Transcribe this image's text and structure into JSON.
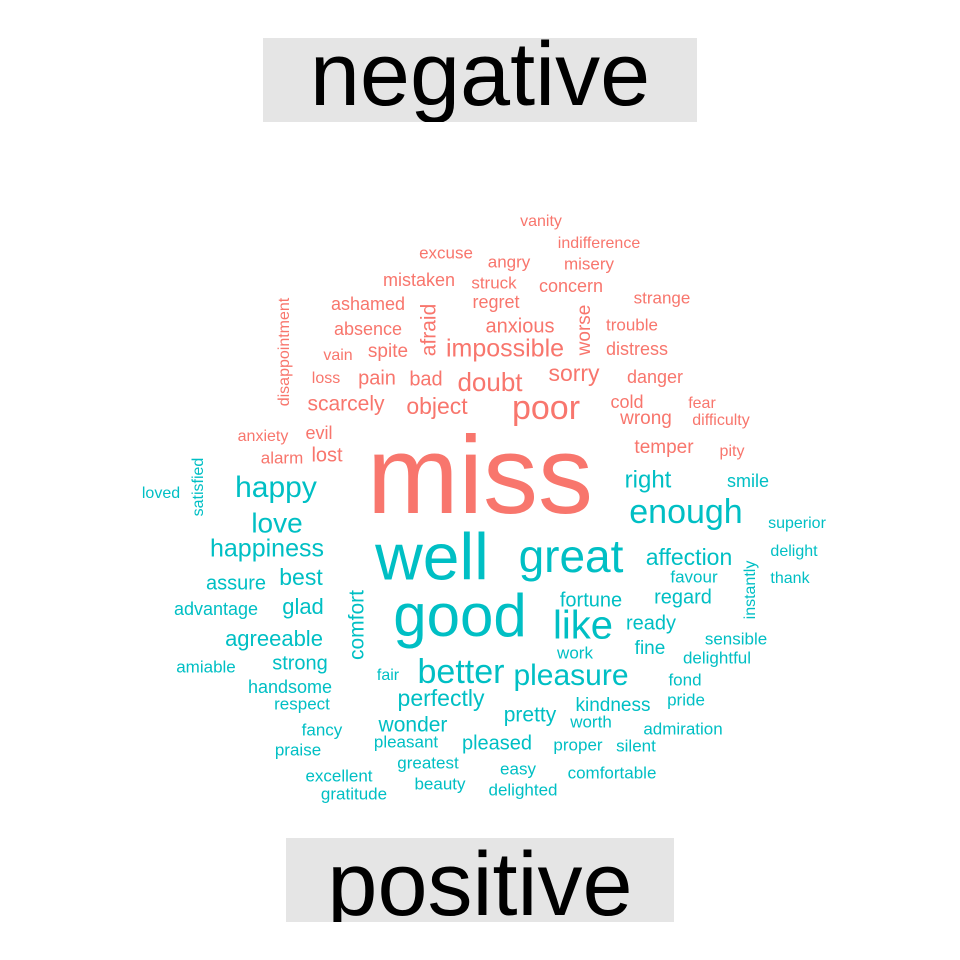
{
  "groups": {
    "negative": "negative",
    "positive": "positive"
  },
  "colors": {
    "negative": "#f8766d",
    "positive": "#00bfc4",
    "label_bg": "#e5e5e5",
    "label_text": "#000000"
  },
  "negative_words": [
    "miss",
    "poor",
    "doubt",
    "impossible",
    "sorry",
    "object",
    "scarcely",
    "afraid",
    "worse",
    "anxious",
    "bad",
    "pain",
    "spite",
    "regret",
    "concern",
    "wrong",
    "cold",
    "temper",
    "danger",
    "distress",
    "trouble",
    "strange",
    "ashamed",
    "absence",
    "mistaken",
    "struck",
    "angry",
    "misery",
    "excuse",
    "vanity",
    "indifference",
    "disappointment",
    "anxiety",
    "evil",
    "alarm",
    "lost",
    "loss",
    "vain",
    "fear",
    "difficulty",
    "pity"
  ],
  "positive_words": [
    "well",
    "good",
    "great",
    "like",
    "better",
    "pleasure",
    "enough",
    "happy",
    "love",
    "happiness",
    "right",
    "affection",
    "comfort",
    "best",
    "assure",
    "advantage",
    "glad",
    "agreeable",
    "strong",
    "amiable",
    "handsome",
    "respect",
    "fancy",
    "praise",
    "excellent",
    "gratitude",
    "pleasant",
    "greatest",
    "beauty",
    "easy",
    "delighted",
    "comfortable",
    "pleased",
    "proper",
    "silent",
    "worth",
    "kindness",
    "admiration",
    "pride",
    "fond",
    "delightful",
    "sensible",
    "fine",
    "ready",
    "regard",
    "fortune",
    "favour",
    "thank",
    "delight",
    "superior",
    "smile",
    "instantly",
    "satisfied",
    "loved",
    "perfectly",
    "wonder",
    "pretty",
    "work",
    "fair"
  ]
}
